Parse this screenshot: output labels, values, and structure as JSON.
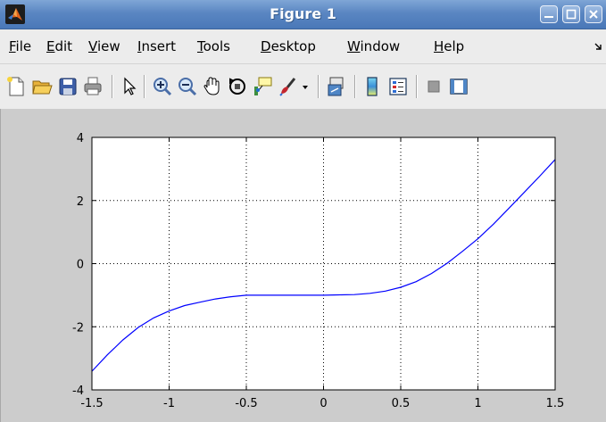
{
  "window": {
    "title": "Figure 1",
    "controls": [
      "minimize",
      "maximize",
      "close"
    ]
  },
  "menu": {
    "items": [
      {
        "label": "File",
        "mnemonic": "F",
        "rest": "ile"
      },
      {
        "label": "Edit",
        "mnemonic": "E",
        "rest": "dit"
      },
      {
        "label": "View",
        "mnemonic": "V",
        "rest": "iew"
      },
      {
        "label": "Insert",
        "mnemonic": "I",
        "rest": "nsert"
      },
      {
        "label": "Tools",
        "mnemonic": "T",
        "rest": "ools"
      },
      {
        "label": "Desktop",
        "mnemonic": "D",
        "rest": "esktop"
      },
      {
        "label": "Window",
        "mnemonic": "W",
        "rest": "indow"
      },
      {
        "label": "Help",
        "mnemonic": "H",
        "rest": "elp"
      }
    ]
  },
  "toolbar": {
    "buttons": [
      "new-figure-icon",
      "open-file-icon",
      "save-figure-icon",
      "print-figure-icon",
      "edit-plot-icon",
      "zoom-in-icon",
      "zoom-out-icon",
      "pan-icon",
      "rotate-3d-icon",
      "data-cursor-icon",
      "brush-icon",
      "brush-dropdown-icon",
      "link-plot-icon",
      "insert-colorbar-icon",
      "insert-legend-icon",
      "hide-plot-tools-icon",
      "show-plot-tools-icon"
    ]
  },
  "chart_data": {
    "type": "line",
    "title": "",
    "xlabel": "",
    "ylabel": "",
    "xlim": [
      -1.5,
      1.5
    ],
    "ylim": [
      -4,
      4
    ],
    "xticks": [
      -1.5,
      -1,
      -0.5,
      0,
      0.5,
      1,
      1.5
    ],
    "xtick_labels": [
      "-1.5",
      "-1",
      "-0.5",
      "0",
      "0.5",
      "1",
      "1.5"
    ],
    "yticks": [
      -4,
      -2,
      0,
      2,
      4
    ],
    "ytick_labels": [
      "-4",
      "-2",
      "0",
      "2",
      "4"
    ],
    "grid": true,
    "grid_style": "dotted",
    "series": [
      {
        "color": "#0000ff",
        "x": [
          -1.5,
          -1.4,
          -1.3,
          -1.2,
          -1.1,
          -1.0,
          -0.9,
          -0.8,
          -0.7,
          -0.6,
          -0.5,
          -0.4,
          -0.3,
          -0.2,
          -0.1,
          0.0,
          0.1,
          0.2,
          0.3,
          0.4,
          0.5,
          0.6,
          0.7,
          0.8,
          0.9,
          1.0,
          1.1,
          1.2,
          1.3,
          1.4,
          1.5
        ],
        "y": [
          -3.41,
          -2.89,
          -2.42,
          -2.02,
          -1.72,
          -1.5,
          -1.33,
          -1.22,
          -1.12,
          -1.05,
          -1.0,
          -1.0,
          -1.0,
          -1.0,
          -1.0,
          -1.0,
          -0.99,
          -0.98,
          -0.94,
          -0.87,
          -0.75,
          -0.57,
          -0.31,
          0.01,
          0.39,
          0.79,
          1.25,
          1.75,
          2.26,
          2.77,
          3.3
        ]
      }
    ]
  }
}
